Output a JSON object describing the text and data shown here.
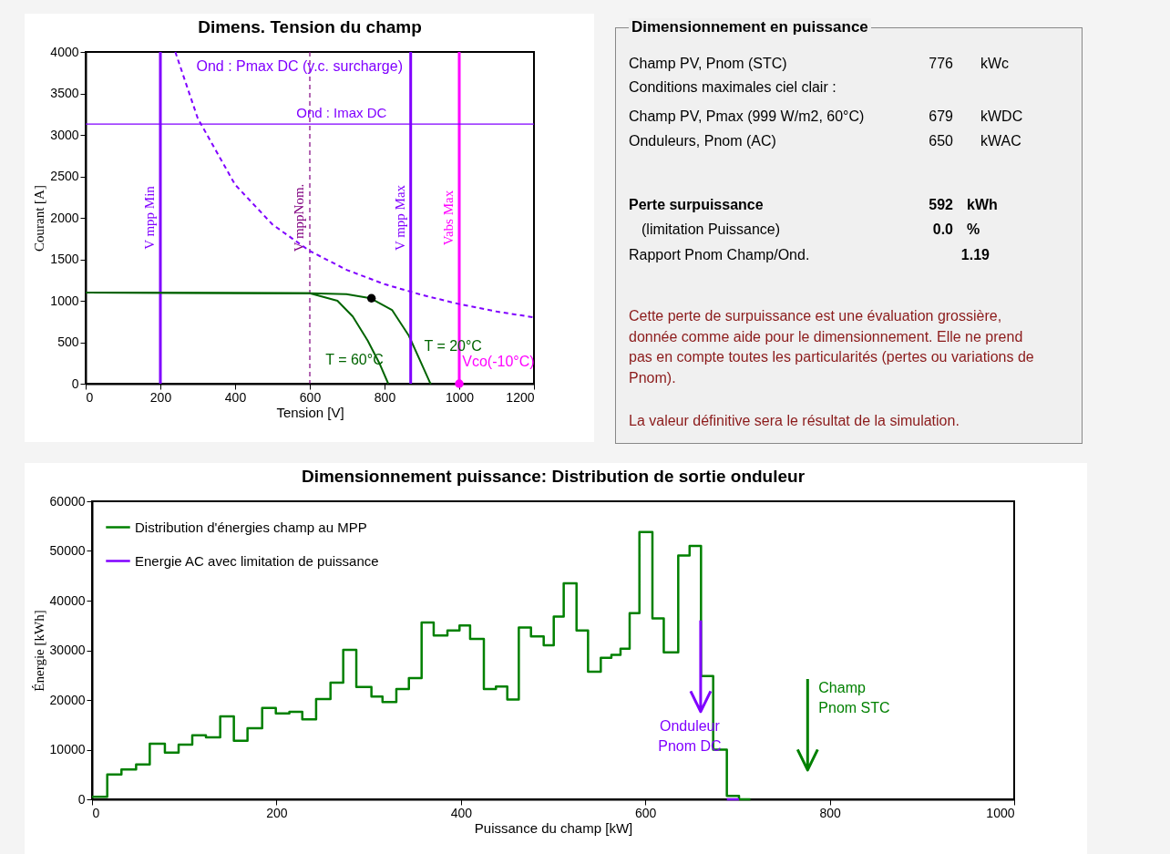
{
  "chart_data": [
    {
      "type": "line",
      "title": "Dimens. Tension du champ",
      "xlabel": "Tension [V]",
      "ylabel": "Courant [A]",
      "xlim": [
        0,
        1200
      ],
      "xticks": [
        0,
        200,
        400,
        600,
        800,
        1000,
        1200
      ],
      "ylim": [
        0,
        4000
      ],
      "yticks": [
        0,
        500,
        1000,
        1500,
        2000,
        2500,
        3000,
        3500,
        4000
      ],
      "grid": false,
      "legend": false,
      "series": [
        {
          "color": "#006400",
          "x": [
            0,
            600,
            698,
            763,
            820,
            865,
            893,
            922,
            925
          ],
          "values": [
            1100,
            1090,
            1080,
            1030,
            890,
            580,
            300,
            10,
            0
          ]
        },
        {
          "color": "#006400",
          "x": [
            0,
            600,
            674,
            715,
            755,
            788,
            810
          ],
          "values": [
            1100,
            1090,
            1000,
            810,
            520,
            230,
            0
          ]
        },
        {
          "color": "#8000ff",
          "line_style": "dashed",
          "x": [
            240,
            300,
            400,
            500,
            600,
            700,
            800,
            900,
            1000,
            1100,
            1200
          ],
          "values": [
            4000,
            3200,
            2400,
            1920,
            1600,
            1370,
            1200,
            1070,
            960,
            870,
            800
          ]
        },
        {
          "type": "scatter",
          "marker": "circle",
          "color": "#000000",
          "x": [
            765
          ],
          "values": [
            1030
          ]
        },
        {
          "type": "scatter",
          "marker": "circle",
          "color": "#ff00ff",
          "x": [
            1000
          ],
          "values": [
            0
          ]
        }
      ],
      "ref_lines": [
        {
          "axis": "x",
          "value": 200,
          "label": "V mpp Min",
          "color": "#8000ff"
        },
        {
          "axis": "x",
          "value": 600,
          "label": "V mppNom.",
          "color": "#800080",
          "line_style": "dashed"
        },
        {
          "axis": "x",
          "value": 870,
          "label": "V mpp Max",
          "color": "#8000ff"
        },
        {
          "axis": "x",
          "value": 1000,
          "label": "Vabs Max",
          "color": "#ff00ff"
        },
        {
          "axis": "y",
          "value": 3130,
          "label": "Ond : Imax DC",
          "color": "#8000ff"
        }
      ],
      "annotations": [
        "Ond : Pmax DC  (y.c. surcharge)",
        "T = 20°C",
        "T = 60°C",
        "Vco(-10°C)"
      ]
    },
    {
      "type": "other",
      "title": "Dimensionnement en puissance",
      "annotations": [
        "Champ PV, Pnom (STC)",
        "776",
        "kWc",
        "Conditions maximales ciel clair :",
        "Champ PV, Pmax (999 W/m2, 60°C)",
        "679",
        "kWDC",
        "Onduleurs, Pnom (AC)",
        "650",
        "kWAC",
        "Perte surpuissance",
        "592",
        "kWh",
        "(limitation Puissance)",
        "0.0",
        "%",
        "Rapport Pnom Champ/Ond.",
        "1.19",
        "Cette perte de surpuissance est une évaluation grossière, donnée comme aide pour le dimensionnement. Elle ne prend pas en compte toutes les particularités (pertes ou variations de Pnom).",
        "La valeur définitive sera le résultat de la simulation."
      ]
    },
    {
      "type": "step",
      "title": "Dimensionnement puissance: Distribution de sortie onduleur",
      "xlabel": "Puissance du champ [kW]",
      "ylabel": "Énergie [kWh]",
      "xlim": [
        0,
        1000
      ],
      "xticks": [
        0,
        200,
        400,
        600,
        800,
        1000
      ],
      "ylim": [
        0,
        60000
      ],
      "yticks": [
        0,
        10000,
        20000,
        30000,
        40000,
        50000,
        60000
      ],
      "grid": false,
      "legend": "top left",
      "series": [
        {
          "name": "Distribution d'énergies champ au MPP",
          "color": "#008000",
          "x": [
            0,
            16.5,
            31.9,
            47.8,
            62.6,
            79,
            93.9,
            108.7,
            123.5,
            139,
            153.8,
            168.6,
            184.5,
            199.3,
            214,
            228,
            243,
            258.6,
            272.4,
            286.6,
            303,
            315,
            330,
            343.6,
            357.4,
            370.5,
            385.4,
            398.5,
            410,
            424.9,
            438,
            450.3,
            462.8,
            476,
            489.8,
            500.7,
            511.5,
            525.4,
            537.9,
            551.7,
            563.2,
            573.1,
            583,
            593.6,
            607.7,
            620,
            635.7,
            648,
            660.4,
            673.6,
            688.4,
            701.6,
            714
          ],
          "values": [
            500,
            5000,
            6000,
            7000,
            11200,
            9400,
            11000,
            12900,
            12500,
            16700,
            11800,
            14300,
            18400,
            17300,
            17600,
            16100,
            20200,
            23500,
            30100,
            22600,
            20700,
            19600,
            22200,
            24400,
            35600,
            33000,
            34000,
            35000,
            32300,
            22200,
            22700,
            20100,
            34600,
            32800,
            31000,
            36800,
            43500,
            34000,
            25700,
            28500,
            29100,
            30300,
            37500,
            53800,
            36400,
            29600,
            49100,
            51000,
            24800,
            10000,
            700,
            0,
            0
          ]
        },
        {
          "name": "Energie AC avec limitation de puissance",
          "color": "#8000ff",
          "x": [
            688.4,
            701.6
          ],
          "values": [
            0,
            0
          ]
        }
      ],
      "annotations": [
        {
          "text": "Onduleur\nPnom DC",
          "x": 660,
          "y": 36000
        },
        "Champ\nPnom STC"
      ]
    }
  ]
}
